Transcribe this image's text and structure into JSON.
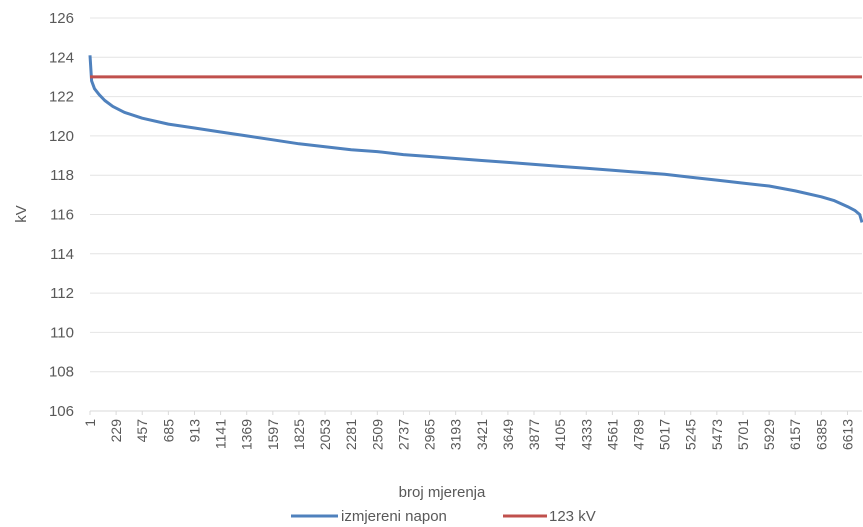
{
  "chart_data": {
    "type": "line",
    "title": "",
    "xlabel": "broj mjerenja",
    "ylabel": "kV",
    "ylim": [
      106,
      126
    ],
    "y_ticks": [
      "106",
      "108",
      "110",
      "112",
      "114",
      "116",
      "118",
      "120",
      "122",
      "124",
      "126"
    ],
    "x_tick_labels": [
      "1",
      "229",
      "457",
      "685",
      "913",
      "1141",
      "1369",
      "1597",
      "1825",
      "2053",
      "2281",
      "2509",
      "2737",
      "2965",
      "3193",
      "3421",
      "3649",
      "3877",
      "4105",
      "4333",
      "4561",
      "4789",
      "5017",
      "5245",
      "5473",
      "5701",
      "5929",
      "6157",
      "6385",
      "6613"
    ],
    "x_range": [
      1,
      6740
    ],
    "grid": "horizontal",
    "legend_position": "bottom",
    "series": [
      {
        "name": "izmjereni napon",
        "color": "#4f81bd",
        "x": [
          1,
          15,
          40,
          80,
          130,
          200,
          300,
          457,
          685,
          913,
          1141,
          1369,
          1597,
          1825,
          2053,
          2281,
          2509,
          2737,
          2965,
          3193,
          3421,
          3649,
          3877,
          4105,
          4333,
          4561,
          4789,
          5017,
          5245,
          5473,
          5701,
          5929,
          6157,
          6385,
          6500,
          6613,
          6680,
          6720,
          6740
        ],
        "values": [
          124.1,
          122.8,
          122.4,
          122.1,
          121.8,
          121.5,
          121.2,
          120.9,
          120.6,
          120.4,
          120.2,
          120.0,
          119.8,
          119.6,
          119.45,
          119.3,
          119.2,
          119.05,
          118.95,
          118.85,
          118.75,
          118.65,
          118.55,
          118.45,
          118.35,
          118.25,
          118.15,
          118.05,
          117.9,
          117.75,
          117.6,
          117.45,
          117.2,
          116.9,
          116.7,
          116.4,
          116.2,
          116.0,
          115.6
        ]
      },
      {
        "name": "123 kV",
        "color": "#c0504d",
        "x": [
          1,
          6740
        ],
        "values": [
          123,
          123
        ]
      }
    ]
  }
}
